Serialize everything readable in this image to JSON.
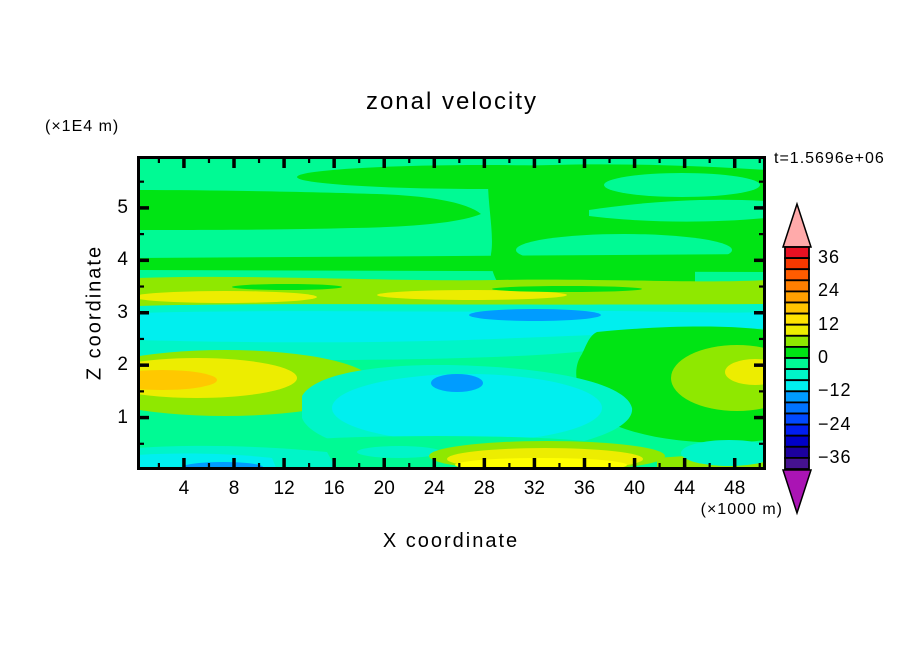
{
  "palette": {
    "background": "#FFFFFF",
    "frame": "#000000",
    "spring": "#00FA94",
    "green": "#00E414",
    "yellow_green": "#8FE800",
    "yellow": "#EDED00",
    "bright_yellow": "#FFFF00",
    "gold": "#FFC800",
    "aquamarine": "#00F5C8",
    "cyan": "#00EFEF",
    "dodger": "#009CFF",
    "pink": "#FFAAAA",
    "magenta": "#AA14B4"
  },
  "header": {
    "title": "zonal velocity",
    "y_units": "(×1E4 m)",
    "time_annotation": "t=1.5696e+06"
  },
  "footer": {
    "x_units": "(×1000 m)"
  },
  "chart_data": {
    "type": "heatmap",
    "subtype": "filled_contour",
    "title": "zonal velocity",
    "xlabel": "X coordinate",
    "x_units": "(×1000 m)",
    "ylabel": "Z coordinate",
    "y_units": "(×1E4 m)",
    "time_annotation": "t=1.5696e+06",
    "x_range": [
      0.25,
      50.5
    ],
    "y_range": [
      0,
      5.99
    ],
    "grid": false,
    "x_axis": {
      "major_ticks": [
        4,
        8,
        12,
        16,
        20,
        24,
        28,
        32,
        36,
        40,
        44,
        48
      ],
      "tick_labels": [
        "4",
        "8",
        "12",
        "16",
        "20",
        "24",
        "28",
        "32",
        "36",
        "40",
        "44",
        "48"
      ],
      "minor_ticks": [
        2,
        6,
        10,
        14,
        18,
        22,
        26,
        30,
        34,
        38,
        42,
        46,
        50
      ]
    },
    "y_axis": {
      "major_ticks": [
        1,
        2,
        3,
        4,
        5
      ],
      "tick_labels": [
        "1",
        "2",
        "3",
        "4",
        "5"
      ],
      "minor_ticks": [
        0.5,
        1.5,
        2.5,
        3.5,
        4.5,
        5.5
      ]
    },
    "colorbar": {
      "position": "right",
      "contour_interval": 4,
      "tick_labels": [
        "36",
        "24",
        "12",
        "0",
        "−12",
        "−24",
        "−36"
      ],
      "label_boundary_indices": [
        1,
        4,
        7,
        10,
        13,
        16,
        19
      ],
      "above_color": "#FFAAAA",
      "below_color": "#AA14B4",
      "segments": [
        {
          "range": [
            36,
            40
          ],
          "color": "#E81123"
        },
        {
          "range": [
            32,
            36
          ],
          "color": "#F63800"
        },
        {
          "range": [
            28,
            32
          ],
          "color": "#FF5C00"
        },
        {
          "range": [
            24,
            28
          ],
          "color": "#FF7F00"
        },
        {
          "range": [
            20,
            24
          ],
          "color": "#FFA000"
        },
        {
          "range": [
            16,
            20
          ],
          "color": "#FFC400"
        },
        {
          "range": [
            12,
            16
          ],
          "color": "#FFE300"
        },
        {
          "range": [
            8,
            12
          ],
          "color": "#EDED00"
        },
        {
          "range": [
            4,
            8
          ],
          "color": "#8FE800"
        },
        {
          "range": [
            0,
            4
          ],
          "color": "#00E414"
        },
        {
          "range": [
            -4,
            0
          ],
          "color": "#00FA94"
        },
        {
          "range": [
            -8,
            -4
          ],
          "color": "#00F5C8"
        },
        {
          "range": [
            -12,
            -8
          ],
          "color": "#00EFEF"
        },
        {
          "range": [
            -16,
            -12
          ],
          "color": "#009CFF"
        },
        {
          "range": [
            -20,
            -16
          ],
          "color": "#0073FF"
        },
        {
          "range": [
            -24,
            -20
          ],
          "color": "#0049FF"
        },
        {
          "range": [
            -28,
            -24
          ],
          "color": "#001EF0"
        },
        {
          "range": [
            -32,
            -28
          ],
          "color": "#0000C8"
        },
        {
          "range": [
            -36,
            -32
          ],
          "color": "#1C009E"
        },
        {
          "range": [
            -40,
            -36
          ],
          "color": "#45128F"
        }
      ],
      "field_features": [
        "Background field mostly −4..0 (spring green) left half and 0..4 (green) right half",
        "Green band (0..4) across upper-left near z≈4.5 and stripe near z≈5.7",
        "Yellow-green/yellow shear band (4..12) across full width near z≈3.2",
        "Cyan band (−12..−4) across full width near z≈2.8 with −16..−12 streak at x≈27..37, z≈2.95",
        "Left yellow/gold maximum (8..20) near x≈0..7, z≈1.7",
        "Large cyan/aquamarine minimum (−12..−4) centered x≈13..28, z≈0.5..2",
        "Small −16..−12 blue blob at x≈25, z≈1.65",
        "Yellow-green patch (4..8) on right near x≈37..50, z≈1.5",
        "Bottom boundary: yellow maximum (8..12+) at x≈26..40, cyan with −16..−12 streak at x≈4..10"
      ]
    }
  }
}
